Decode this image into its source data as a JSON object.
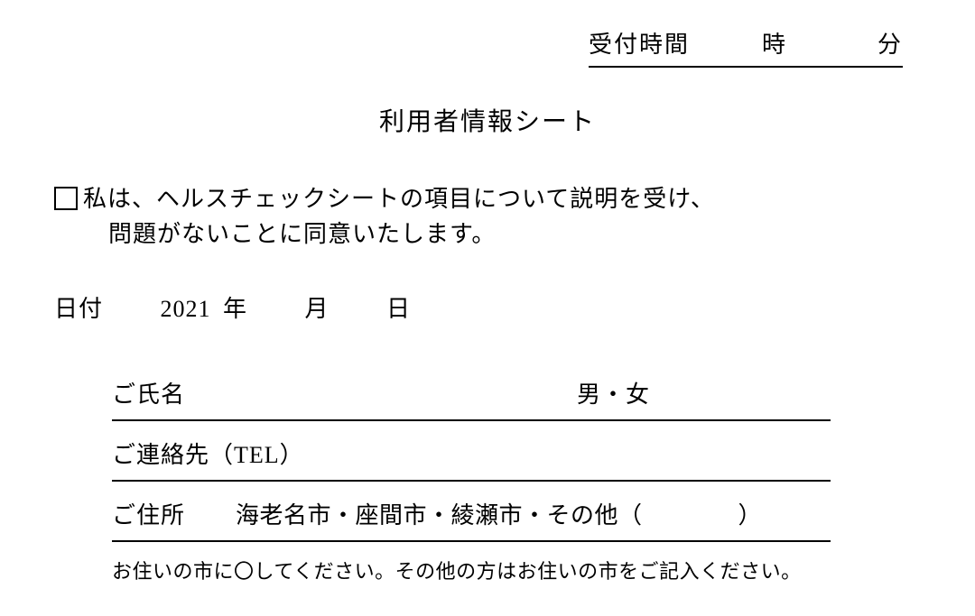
{
  "reception": {
    "label": "受付時間",
    "hour_label": "時",
    "minute_label": "分"
  },
  "title": "利用者情報シート",
  "consent": {
    "line1": "私は、ヘルスチェックシートの項目について説明を受け、",
    "line2": "問題がないことに同意いたします。"
  },
  "date": {
    "label": "日付",
    "year": "2021",
    "year_label": "年",
    "month_label": "月",
    "day_label": "日"
  },
  "name": {
    "label": "ご氏名",
    "gender_options": "男・女"
  },
  "tel": {
    "label": "ご連絡先（TEL）"
  },
  "address": {
    "label": "ご住所",
    "options": "海老名市・座間市・綾瀬市・その他（　　　　）"
  },
  "note": "お住いの市に〇してください。その他の方はお住いの市をご記入ください。"
}
